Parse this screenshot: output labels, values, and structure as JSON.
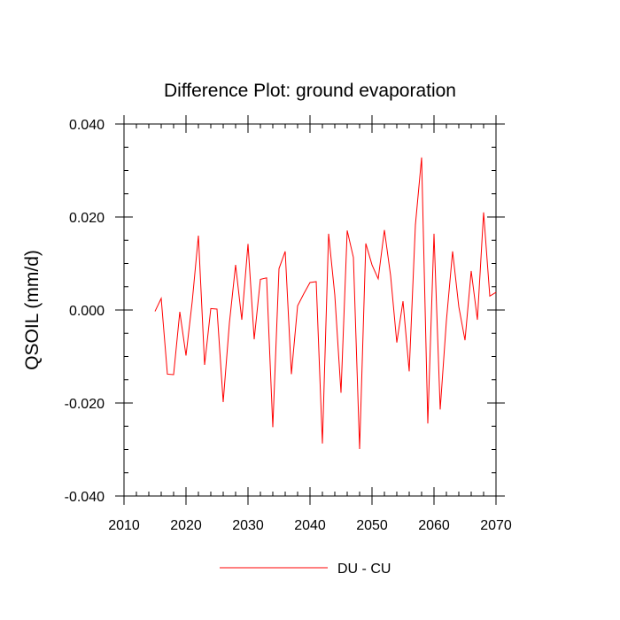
{
  "chart_data": {
    "type": "line",
    "title": "Difference Plot: ground evaporation",
    "xlabel": "",
    "ylabel": "QSOIL  (mm/d)",
    "xlim": [
      2010,
      2070
    ],
    "ylim": [
      -0.04,
      0.04
    ],
    "x_ticks": [
      2010,
      2020,
      2030,
      2040,
      2050,
      2060,
      2070
    ],
    "x_tick_labels": [
      "2010",
      "2020",
      "2030",
      "2040",
      "2050",
      "2060",
      "2070"
    ],
    "y_ticks": [
      -0.04,
      -0.02,
      0.0,
      0.02,
      0.04
    ],
    "y_tick_labels": [
      "-0.040",
      "-0.020",
      "0.000",
      "0.020",
      "0.040"
    ],
    "grid": false,
    "legend_position": "bottom",
    "line_color": "#ff0000",
    "series": [
      {
        "name": "DU - CU",
        "x": [
          2015,
          2016,
          2017,
          2018,
          2019,
          2020,
          2021,
          2022,
          2023,
          2024,
          2025,
          2026,
          2027,
          2028,
          2029,
          2030,
          2031,
          2032,
          2033,
          2034,
          2035,
          2036,
          2037,
          2038,
          2039,
          2040,
          2041,
          2042,
          2043,
          2044,
          2045,
          2046,
          2047,
          2048,
          2049,
          2050,
          2051,
          2052,
          2053,
          2054,
          2055,
          2056,
          2057,
          2058,
          2059,
          2060,
          2061,
          2062,
          2063,
          2064,
          2065,
          2066,
          2067,
          2068,
          2069,
          2070
        ],
        "values": [
          -0.0003,
          0.0025,
          -0.0138,
          -0.0139,
          -0.0004,
          -0.0098,
          0.0018,
          0.016,
          -0.0118,
          0.0003,
          0.0002,
          -0.0198,
          -0.0028,
          0.0097,
          -0.0021,
          0.0142,
          -0.0063,
          0.0066,
          0.0069,
          -0.0252,
          0.0089,
          0.0126,
          -0.0138,
          0.0009,
          0.0035,
          0.0059,
          0.0061,
          -0.0287,
          0.0164,
          0.0032,
          -0.0178,
          0.0171,
          0.0113,
          -0.0299,
          0.0143,
          0.0097,
          0.0067,
          0.0172,
          0.0074,
          -0.007,
          0.0019,
          -0.0132,
          0.0183,
          0.0328,
          -0.0244,
          0.0164,
          -0.0214,
          -0.0023,
          0.0126,
          0.0007,
          -0.0065,
          0.0084,
          -0.0021,
          0.021,
          0.003,
          0.0038
        ]
      }
    ]
  }
}
